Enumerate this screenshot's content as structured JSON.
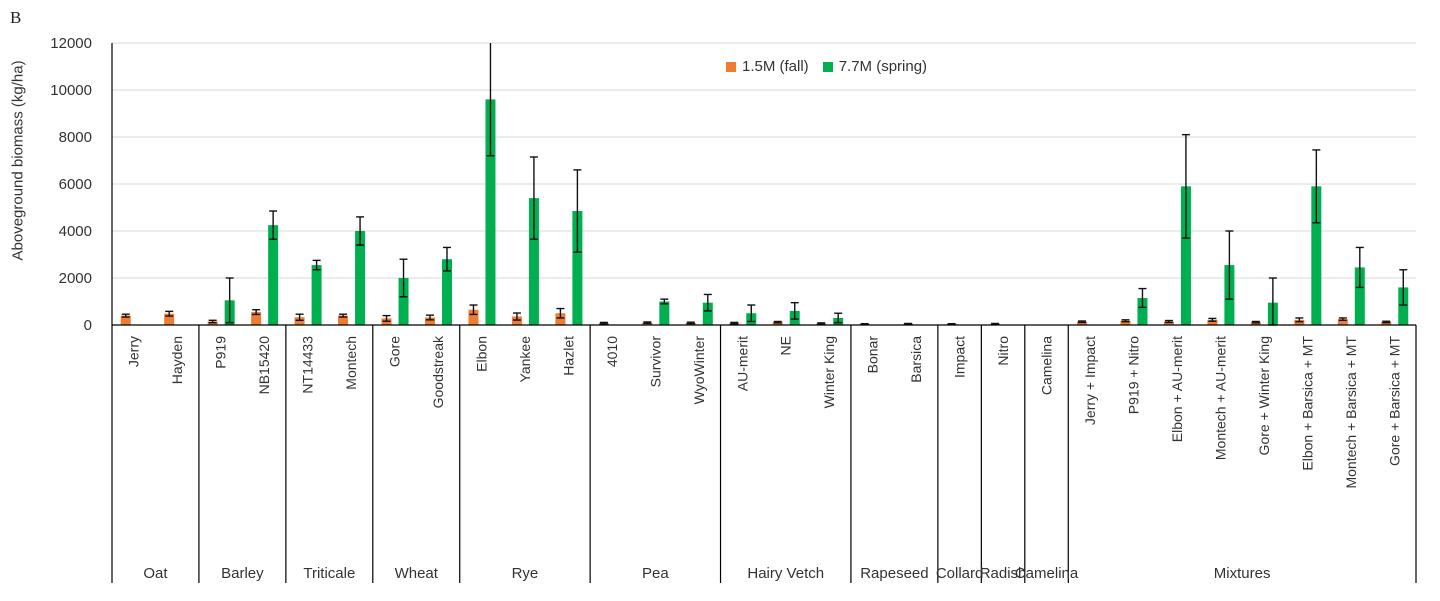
{
  "chart_data": {
    "type": "bar",
    "panel_label": "B",
    "title": "",
    "xlabel": "",
    "ylabel": "Aboveground biomass (kg/ha)",
    "ylim": [
      0,
      12000
    ],
    "yticks": [
      0,
      2000,
      4000,
      6000,
      8000,
      10000,
      12000
    ],
    "grid": true,
    "legend_position": "top-center",
    "categories": [
      "Jerry",
      "Hayden",
      "P919",
      "NB15420",
      "NT14433",
      "Montech",
      "Gore",
      "Goodstreak",
      "Elbon",
      "Yankee",
      "Hazlet",
      "4010",
      "Survivor",
      "WyoWinter",
      "AU-merit",
      "NE",
      "Winter King",
      "Bonar",
      "Barsica",
      "Impact",
      "Nitro",
      "Camelina",
      "Jerry + Impact",
      "P919 + Nitro",
      "Elbon + AU-merit",
      "Montech + AU-merit",
      "Gore + Winter King",
      "Elbon + Barsica + MT",
      "Montech + Barsica + MT",
      "Gore + Barsica + MT"
    ],
    "groups": [
      {
        "name": "Oat",
        "count": 2
      },
      {
        "name": "Barley",
        "count": 2
      },
      {
        "name": "Triticale",
        "count": 2
      },
      {
        "name": "Wheat",
        "count": 2
      },
      {
        "name": "Rye",
        "count": 3
      },
      {
        "name": "Pea",
        "count": 3
      },
      {
        "name": "Hairy Vetch",
        "count": 3
      },
      {
        "name": "Rapeseed",
        "count": 2
      },
      {
        "name": "Collard",
        "count": 1
      },
      {
        "name": "Radish",
        "count": 1
      },
      {
        "name": "Camelina",
        "count": 1
      },
      {
        "name": "Mixtures",
        "count": 8
      }
    ],
    "series": [
      {
        "name": "1.5M (fall)",
        "color": "#ED7D31",
        "values": [
          400,
          480,
          150,
          550,
          330,
          400,
          280,
          320,
          650,
          360,
          500,
          80,
          100,
          90,
          80,
          120,
          60,
          40,
          50,
          40,
          50,
          0,
          140,
          180,
          150,
          220,
          120,
          220,
          250,
          130
        ],
        "errors": [
          60,
          100,
          50,
          100,
          130,
          60,
          120,
          100,
          200,
          150,
          200,
          30,
          30,
          30,
          30,
          30,
          30,
          15,
          15,
          15,
          15,
          0,
          30,
          40,
          40,
          60,
          30,
          80,
          50,
          30
        ]
      },
      {
        "name": "7.7M (spring)",
        "color": "#00B050",
        "values": [
          0,
          0,
          1050,
          4250,
          2550,
          4000,
          2000,
          2800,
          9600,
          5400,
          4850,
          0,
          1000,
          950,
          500,
          600,
          300,
          0,
          0,
          0,
          0,
          0,
          0,
          1150,
          5900,
          2550,
          950,
          5900,
          2450,
          1600
        ],
        "errors": [
          0,
          0,
          950,
          600,
          200,
          600,
          800,
          500,
          2400,
          1750,
          1750,
          0,
          100,
          350,
          350,
          350,
          200,
          0,
          0,
          0,
          0,
          0,
          0,
          400,
          2200,
          1450,
          1050,
          1550,
          850,
          750
        ]
      }
    ]
  }
}
